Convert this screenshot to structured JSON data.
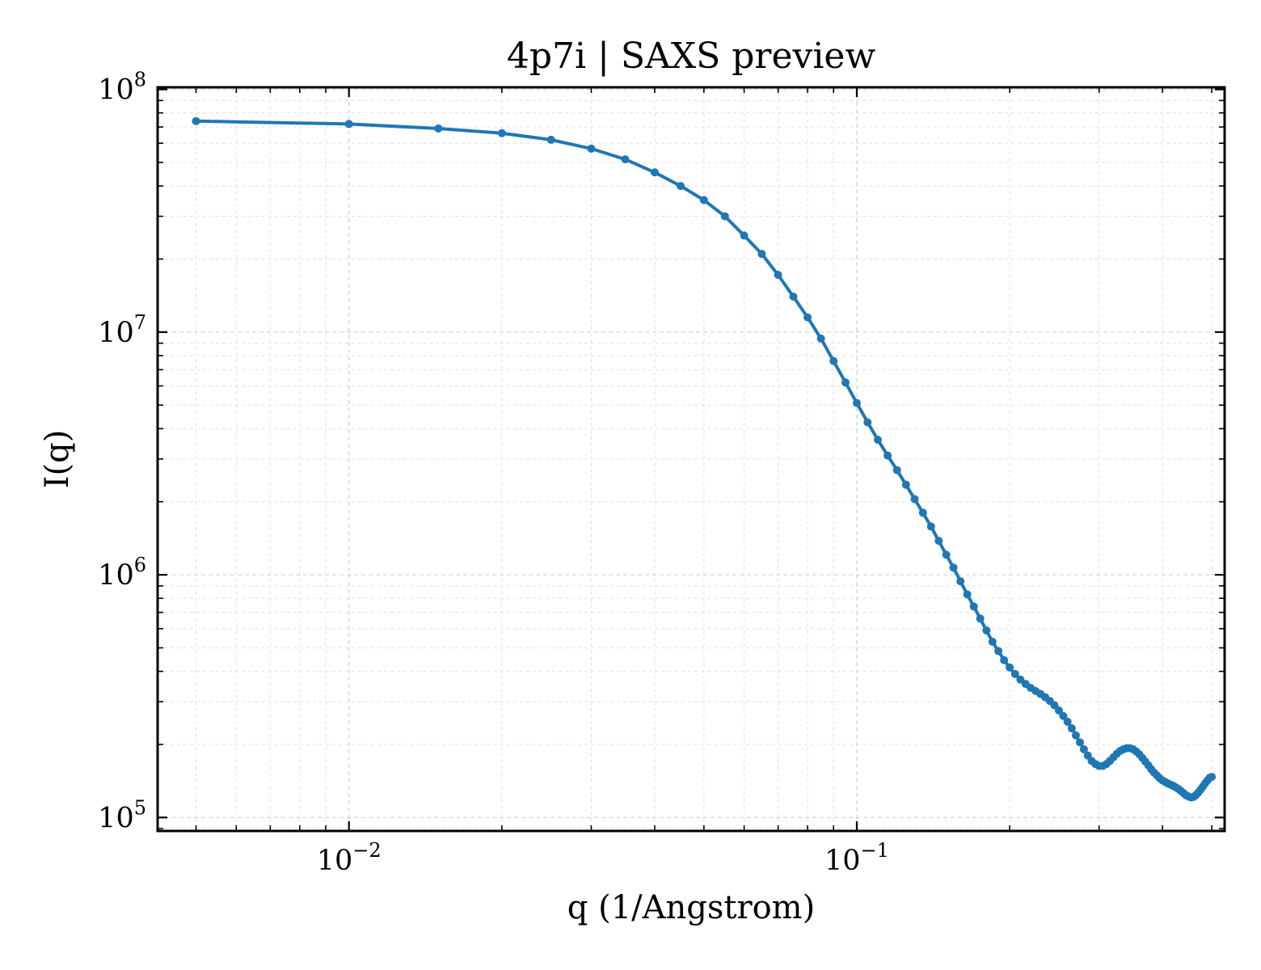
{
  "chart_data": {
    "type": "line",
    "title": "4p7i | SAXS preview",
    "xlabel": "q (1/Angstrom)",
    "ylabel": "I(q)",
    "xscale": "log",
    "yscale": "log",
    "xlim": [
      0.0042,
      0.53
    ],
    "ylim": [
      88000,
      102000000
    ],
    "grid": true,
    "color": "#1f77b4",
    "xticks": [
      {
        "value": 0.01,
        "base": "10",
        "exp": "−2"
      },
      {
        "value": 0.1,
        "base": "10",
        "exp": "−1"
      }
    ],
    "yticks": [
      {
        "value": 100000,
        "base": "10",
        "exp": "5"
      },
      {
        "value": 1000000,
        "base": "10",
        "exp": "6"
      },
      {
        "value": 10000000,
        "base": "10",
        "exp": "7"
      },
      {
        "value": 100000000,
        "base": "10",
        "exp": "8"
      }
    ],
    "series": [
      {
        "x": [
          0.005,
          0.01,
          0.015,
          0.02,
          0.025,
          0.03,
          0.035,
          0.04,
          0.045,
          0.05,
          0.055,
          0.06,
          0.065,
          0.07,
          0.075,
          0.08,
          0.085,
          0.09,
          0.095,
          0.1,
          0.105,
          0.11,
          0.115,
          0.12,
          0.125,
          0.13,
          0.135,
          0.14,
          0.145,
          0.15,
          0.155,
          0.16,
          0.165,
          0.17,
          0.175,
          0.18,
          0.185,
          0.19,
          0.195,
          0.2,
          0.205,
          0.21,
          0.215,
          0.22,
          0.225,
          0.23,
          0.235,
          0.24,
          0.245,
          0.25,
          0.255,
          0.26,
          0.265,
          0.27,
          0.275,
          0.28,
          0.285,
          0.29,
          0.295,
          0.3,
          0.305,
          0.31,
          0.315,
          0.32,
          0.325,
          0.33,
          0.335,
          0.34,
          0.345,
          0.35,
          0.355,
          0.36,
          0.365,
          0.37,
          0.375,
          0.38,
          0.385,
          0.39,
          0.395,
          0.4,
          0.405,
          0.41,
          0.415,
          0.42,
          0.425,
          0.43,
          0.435,
          0.44,
          0.445,
          0.45,
          0.455,
          0.46,
          0.465,
          0.47,
          0.475,
          0.48,
          0.485,
          0.49,
          0.495,
          0.5
        ],
        "y": [
          74000000,
          72000000,
          69000000,
          66000000,
          62000000,
          57000000,
          51500000,
          45500000,
          40000000,
          35000000,
          30000000,
          25000000,
          21000000,
          17200000,
          14000000,
          11500000,
          9400000,
          7600000,
          6200000,
          5100000,
          4250000,
          3600000,
          3100000,
          2700000,
          2350000,
          2050000,
          1800000,
          1580000,
          1380000,
          1210000,
          1070000,
          940000,
          830000,
          740000,
          660000,
          590000,
          530000,
          485000,
          445000,
          415000,
          390000,
          370000,
          355000,
          342000,
          332000,
          323000,
          313000,
          302000,
          290000,
          276000,
          262000,
          248000,
          233000,
          218000,
          204000,
          191000,
          180000,
          171000,
          166000,
          163000,
          163000,
          166000,
          171000,
          177000,
          183000,
          188000,
          191000,
          193000,
          193000,
          191000,
          187000,
          182000,
          176000,
          170000,
          164000,
          158000,
          153000,
          149000,
          145000,
          142000,
          140000,
          138000,
          136500,
          135000,
          133000,
          131000,
          128500,
          126000,
          123500,
          122000,
          121000,
          121500,
          123500,
          126500,
          130000,
          134000,
          138000,
          142000,
          145500,
          147000
        ]
      }
    ]
  }
}
